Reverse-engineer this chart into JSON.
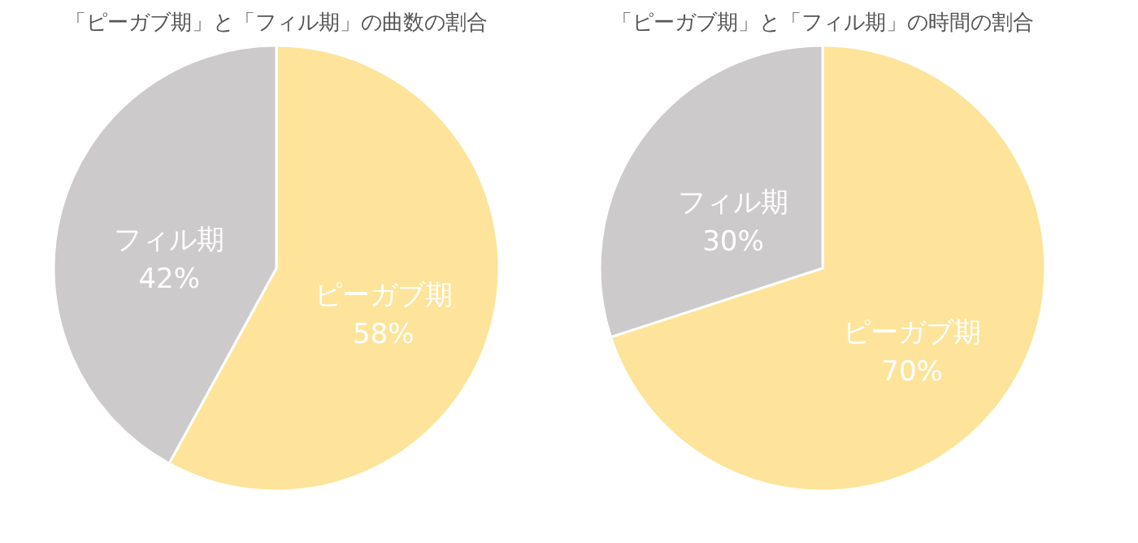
{
  "chart_data": [
    {
      "type": "pie",
      "title": "「ピーガブ期」と「フィル期」の曲数の割合",
      "categories": [
        "ピーガブ期",
        "フィル期"
      ],
      "values": [
        58,
        42
      ],
      "colors": [
        "#fde49a",
        "#cccaca"
      ],
      "value_labels": [
        "58%",
        "42%"
      ]
    },
    {
      "type": "pie",
      "title": "「ピーガブ期」と「フィル期」の時間の割合",
      "categories": [
        "ピーガブ期",
        "フィル期"
      ],
      "values": [
        70,
        30
      ],
      "colors": [
        "#fde49a",
        "#cccaca"
      ],
      "value_labels": [
        "70%",
        "30%"
      ]
    }
  ]
}
